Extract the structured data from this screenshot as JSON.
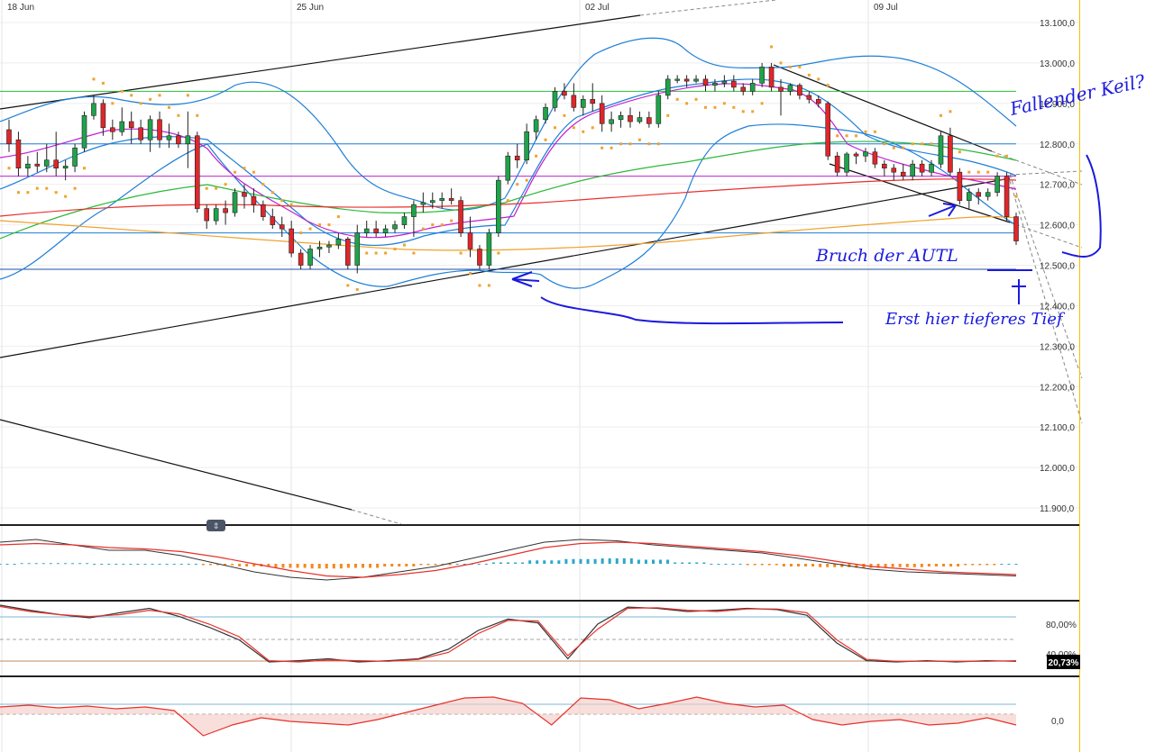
{
  "chart_data": [
    {
      "type": "candlestick",
      "title": "",
      "x_tick_labels": [
        "18 Jun",
        "25 Jun",
        "02 Jul",
        "09 Jul"
      ],
      "y_tick_labels": [
        "13.100,0",
        "13.000,0",
        "12.900,0",
        "12.800,0",
        "12.700,0",
        "12.600,0",
        "12.500,0",
        "12.400,0",
        "12.300,0",
        "12.200,0",
        "12.100,0",
        "12.000,0",
        "11.900,0"
      ],
      "ylim": [
        11860,
        13130
      ],
      "candles": [
        [
          12835,
          12860,
          12780,
          12800
        ],
        [
          12810,
          12830,
          12720,
          12740
        ],
        [
          12740,
          12770,
          12720,
          12750
        ],
        [
          12750,
          12780,
          12730,
          12745
        ],
        [
          12745,
          12800,
          12730,
          12760
        ],
        [
          12760,
          12830,
          12720,
          12740
        ],
        [
          12740,
          12760,
          12710,
          12745
        ],
        [
          12745,
          12800,
          12730,
          12790
        ],
        [
          12790,
          12880,
          12780,
          12870
        ],
        [
          12870,
          12920,
          12860,
          12900
        ],
        [
          12900,
          12910,
          12820,
          12840
        ],
        [
          12840,
          12860,
          12810,
          12830
        ],
        [
          12830,
          12890,
          12820,
          12855
        ],
        [
          12855,
          12880,
          12800,
          12840
        ],
        [
          12840,
          12860,
          12800,
          12810
        ],
        [
          12810,
          12870,
          12780,
          12860
        ],
        [
          12860,
          12880,
          12790,
          12810
        ],
        [
          12810,
          12850,
          12790,
          12820
        ],
        [
          12820,
          12830,
          12790,
          12800
        ],
        [
          12800,
          12880,
          12740,
          12820
        ],
        [
          12820,
          12830,
          12630,
          12640
        ],
        [
          12640,
          12650,
          12590,
          12610
        ],
        [
          12610,
          12650,
          12600,
          12640
        ],
        [
          12640,
          12660,
          12600,
          12630
        ],
        [
          12630,
          12690,
          12620,
          12680
        ],
        [
          12680,
          12700,
          12640,
          12670
        ],
        [
          12670,
          12690,
          12630,
          12650
        ],
        [
          12650,
          12660,
          12610,
          12620
        ],
        [
          12620,
          12640,
          12590,
          12600
        ],
        [
          12600,
          12620,
          12570,
          12590
        ],
        [
          12590,
          12610,
          12520,
          12530
        ],
        [
          12530,
          12540,
          12490,
          12500
        ],
        [
          12500,
          12550,
          12490,
          12540
        ],
        [
          12540,
          12560,
          12520,
          12545
        ],
        [
          12545,
          12560,
          12530,
          12550
        ],
        [
          12550,
          12580,
          12540,
          12565
        ],
        [
          12565,
          12570,
          12490,
          12500
        ],
        [
          12500,
          12600,
          12480,
          12580
        ],
        [
          12580,
          12610,
          12570,
          12590
        ],
        [
          12590,
          12610,
          12570,
          12580
        ],
        [
          12580,
          12600,
          12570,
          12590
        ],
        [
          12590,
          12610,
          12580,
          12600
        ],
        [
          12600,
          12630,
          12590,
          12620
        ],
        [
          12620,
          12660,
          12570,
          12650
        ],
        [
          12650,
          12680,
          12630,
          12655
        ],
        [
          12655,
          12680,
          12640,
          12660
        ],
        [
          12660,
          12680,
          12640,
          12665
        ],
        [
          12665,
          12690,
          12650,
          12660
        ],
        [
          12660,
          12670,
          12570,
          12580
        ],
        [
          12580,
          12620,
          12520,
          12540
        ],
        [
          12540,
          12550,
          12490,
          12500
        ],
        [
          12500,
          12590,
          12490,
          12580
        ],
        [
          12580,
          12720,
          12570,
          12710
        ],
        [
          12710,
          12780,
          12700,
          12770
        ],
        [
          12770,
          12800,
          12740,
          12760
        ],
        [
          12760,
          12850,
          12750,
          12830
        ],
        [
          12830,
          12870,
          12810,
          12860
        ],
        [
          12860,
          12900,
          12850,
          12890
        ],
        [
          12890,
          12940,
          12880,
          12930
        ],
        [
          12930,
          12950,
          12910,
          12920
        ],
        [
          12920,
          12950,
          12880,
          12890
        ],
        [
          12890,
          12920,
          12870,
          12910
        ],
        [
          12910,
          12950,
          12880,
          12900
        ],
        [
          12900,
          12920,
          12830,
          12850
        ],
        [
          12850,
          12880,
          12830,
          12860
        ],
        [
          12860,
          12880,
          12840,
          12870
        ],
        [
          12870,
          12890,
          12840,
          12855
        ],
        [
          12855,
          12880,
          12850,
          12865
        ],
        [
          12865,
          12880,
          12840,
          12850
        ],
        [
          12850,
          12930,
          12840,
          12920
        ],
        [
          12920,
          12970,
          12910,
          12960
        ],
        [
          12960,
          12970,
          12950,
          12960
        ],
        [
          12960,
          12970,
          12940,
          12955
        ],
        [
          12955,
          12970,
          12950,
          12960
        ],
        [
          12960,
          12970,
          12930,
          12945
        ],
        [
          12945,
          12960,
          12930,
          12950
        ],
        [
          12950,
          12970,
          12940,
          12955
        ],
        [
          12955,
          12970,
          12930,
          12940
        ],
        [
          12940,
          12950,
          12920,
          12930
        ],
        [
          12930,
          12960,
          12920,
          12950
        ],
        [
          12950,
          13000,
          12940,
          12990
        ],
        [
          12990,
          13000,
          12930,
          12940
        ],
        [
          12940,
          12960,
          12870,
          12930
        ],
        [
          12930,
          12950,
          12920,
          12945
        ],
        [
          12945,
          12950,
          12910,
          12920
        ],
        [
          12920,
          12930,
          12900,
          12910
        ],
        [
          12910,
          12920,
          12890,
          12900
        ],
        [
          12900,
          12905,
          12760,
          12770
        ],
        [
          12770,
          12780,
          12720,
          12730
        ],
        [
          12730,
          12780,
          12720,
          12775
        ],
        [
          12775,
          12780,
          12750,
          12770
        ],
        [
          12770,
          12790,
          12755,
          12780
        ],
        [
          12780,
          12790,
          12740,
          12750
        ],
        [
          12750,
          12760,
          12720,
          12740
        ],
        [
          12740,
          12750,
          12710,
          12730
        ],
        [
          12730,
          12750,
          12710,
          12720
        ],
        [
          12720,
          12760,
          12710,
          12750
        ],
        [
          12750,
          12760,
          12720,
          12730
        ],
        [
          12730,
          12760,
          12720,
          12750
        ],
        [
          12750,
          12830,
          12740,
          12820
        ],
        [
          12820,
          12840,
          12720,
          12730
        ],
        [
          12730,
          12740,
          12650,
          12660
        ],
        [
          12660,
          12690,
          12640,
          12680
        ],
        [
          12680,
          12690,
          12650,
          12670
        ],
        [
          12670,
          12690,
          12660,
          12680
        ],
        [
          12680,
          12730,
          12670,
          12720
        ],
        [
          12720,
          12730,
          12610,
          12620
        ],
        [
          12620,
          12630,
          12550,
          12560
        ]
      ],
      "horizontal_levels": [
        12930,
        12800,
        12720,
        12580,
        12490
      ],
      "annotations": [
        "Fallender Keil?",
        "Bruch der AUTL",
        "Erst hier tieferes Tief"
      ],
      "colors": {
        "bull": "#1fa34a",
        "bear": "#e0262a",
        "ma_blue": "#1f7fd6",
        "ma_red": "#e8302a",
        "ma_green": "#2db83a",
        "ma_orange": "#f0a22d",
        "ma_purple": "#c020d0",
        "sar": "#f0a22d",
        "handwriting": "#1a1adf"
      }
    },
    {
      "type": "macd",
      "histogram": [
        0,
        0.05,
        0.05,
        0,
        0,
        0,
        -0.1,
        -0.2,
        -0.3,
        -0.35,
        -0.3,
        -0.2,
        -0.1,
        0,
        0.1,
        0.25,
        0.35,
        0.4,
        0.3,
        0.1,
        0,
        -0.1,
        -0.2,
        -0.25,
        -0.3,
        -0.25,
        -0.2,
        -0.1,
        0
      ],
      "macd_line": [
        0.8,
        0.9,
        0.7,
        0.5,
        0.5,
        0.3,
        0.0,
        -0.3,
        -0.5,
        -0.6,
        -0.5,
        -0.3,
        -0.1,
        0.2,
        0.5,
        0.8,
        0.9,
        0.85,
        0.7,
        0.6,
        0.5,
        0.4,
        0.2,
        0.0,
        -0.2,
        -0.3,
        -0.35,
        -0.4,
        -0.45
      ],
      "signal_line": [
        0.7,
        0.75,
        0.7,
        0.6,
        0.55,
        0.45,
        0.25,
        0.0,
        -0.25,
        -0.45,
        -0.5,
        -0.4,
        -0.25,
        0.0,
        0.3,
        0.6,
        0.75,
        0.8,
        0.75,
        0.65,
        0.55,
        0.45,
        0.3,
        0.1,
        -0.1,
        -0.2,
        -0.3,
        -0.35,
        -0.4
      ]
    },
    {
      "type": "stochastic",
      "y_tick_labels": [
        "80,00%",
        "40,00%"
      ],
      "current_value_label": "20,73%",
      "k_line": [
        100,
        92,
        85,
        80,
        88,
        95,
        82,
        65,
        45,
        10,
        12,
        15,
        10,
        12,
        15,
        30,
        60,
        78,
        72,
        15,
        70,
        97,
        95,
        90,
        92,
        95,
        93,
        84,
        40,
        12,
        10,
        12,
        10,
        12,
        11
      ],
      "d_line": [
        98,
        90,
        85,
        82,
        85,
        92,
        86,
        70,
        50,
        12,
        10,
        13,
        12,
        11,
        14,
        25,
        55,
        76,
        75,
        20,
        62,
        95,
        96,
        92,
        90,
        94,
        94,
        88,
        45,
        14,
        11,
        11,
        11,
        11,
        12
      ]
    },
    {
      "type": "oscillator",
      "y_tick_labels": [
        "0,0"
      ],
      "line": [
        0.4,
        0.5,
        0.35,
        0.45,
        0.3,
        0.4,
        0.2,
        -1.2,
        -0.6,
        -0.2,
        -0.4,
        -0.5,
        -0.6,
        -0.3,
        0.1,
        0.5,
        0.9,
        0.95,
        0.6,
        -0.6,
        0.9,
        0.8,
        0.3,
        0.6,
        0.95,
        0.6,
        0.4,
        0.5,
        -0.3,
        -0.6,
        -0.4,
        -0.3,
        -0.6,
        -0.5,
        -0.2,
        -0.6
      ]
    }
  ]
}
